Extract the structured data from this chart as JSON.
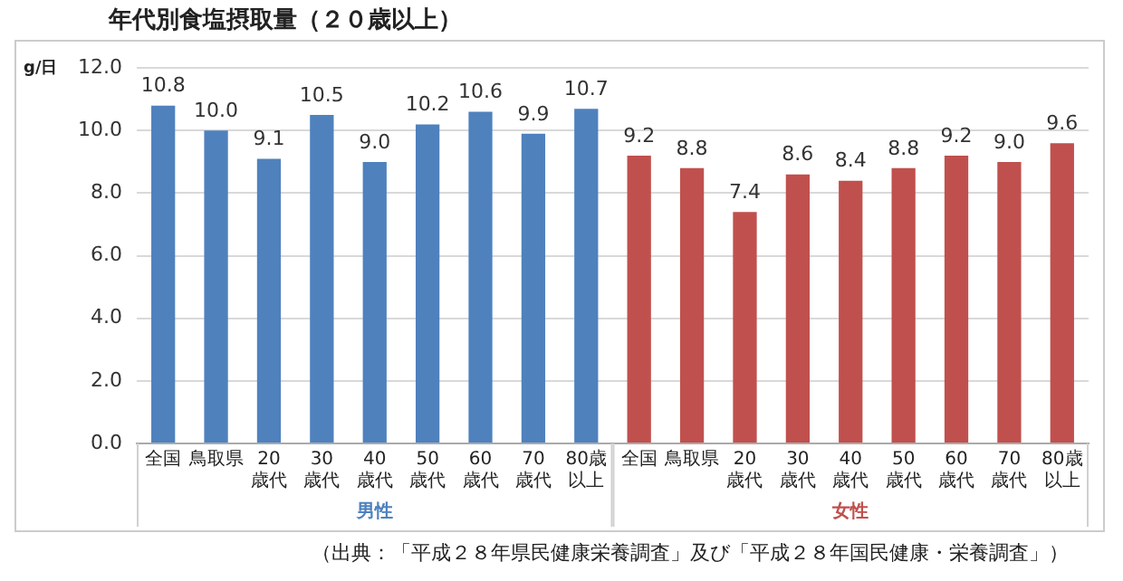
{
  "chart_data": {
    "type": "bar",
    "title": "年代別食塩摂取量（２０歳以上）",
    "ylabel": "g/日",
    "categories": [
      "全国",
      "鳥取県",
      "20歳代",
      "30歳代",
      "40歳代",
      "50歳代",
      "60歳代",
      "70歳代",
      "80歳以上",
      "全国",
      "鳥取県",
      "20歳代",
      "30歳代",
      "40歳代",
      "50歳代",
      "60歳代",
      "70歳代",
      "80歳以上"
    ],
    "series": [
      {
        "name": "男性",
        "color": "#4f81bd",
        "values": [
          10.8,
          10.0,
          9.1,
          10.5,
          9.0,
          10.2,
          10.6,
          9.9,
          10.7,
          null,
          null,
          null,
          null,
          null,
          null,
          null,
          null,
          null
        ],
        "value_labels": [
          "10.8",
          "10.0",
          "9.1",
          "10.5",
          "9.0",
          "10.2",
          "10.6",
          "9.9",
          "10.7",
          null,
          null,
          null,
          null,
          null,
          null,
          null,
          null,
          null
        ]
      },
      {
        "name": "女性",
        "color": "#c0504d",
        "values": [
          null,
          null,
          null,
          null,
          null,
          null,
          null,
          null,
          null,
          9.2,
          8.8,
          7.4,
          8.6,
          8.4,
          8.8,
          9.2,
          9.0,
          9.6
        ],
        "value_labels": [
          null,
          null,
          null,
          null,
          null,
          null,
          null,
          null,
          null,
          "9.2",
          "8.8",
          "7.4",
          "8.6",
          "8.4",
          "8.8",
          "9.2",
          "9.0",
          "9.6"
        ]
      }
    ],
    "ylim": [
      0,
      12
    ],
    "yticks": [
      {
        "value": 0,
        "label": "0.0"
      },
      {
        "value": 2,
        "label": "2.0"
      },
      {
        "value": 4,
        "label": "4.0"
      },
      {
        "value": 6,
        "label": "6.0"
      },
      {
        "value": 8,
        "label": "8.0"
      },
      {
        "value": 10,
        "label": "10.0"
      },
      {
        "value": 12,
        "label": "12.0"
      }
    ],
    "grid": true,
    "annotations": [
      "（出典：「平成２８年県民健康栄養調査」及び「平成２８年国民健康・栄養調査」）"
    ]
  }
}
